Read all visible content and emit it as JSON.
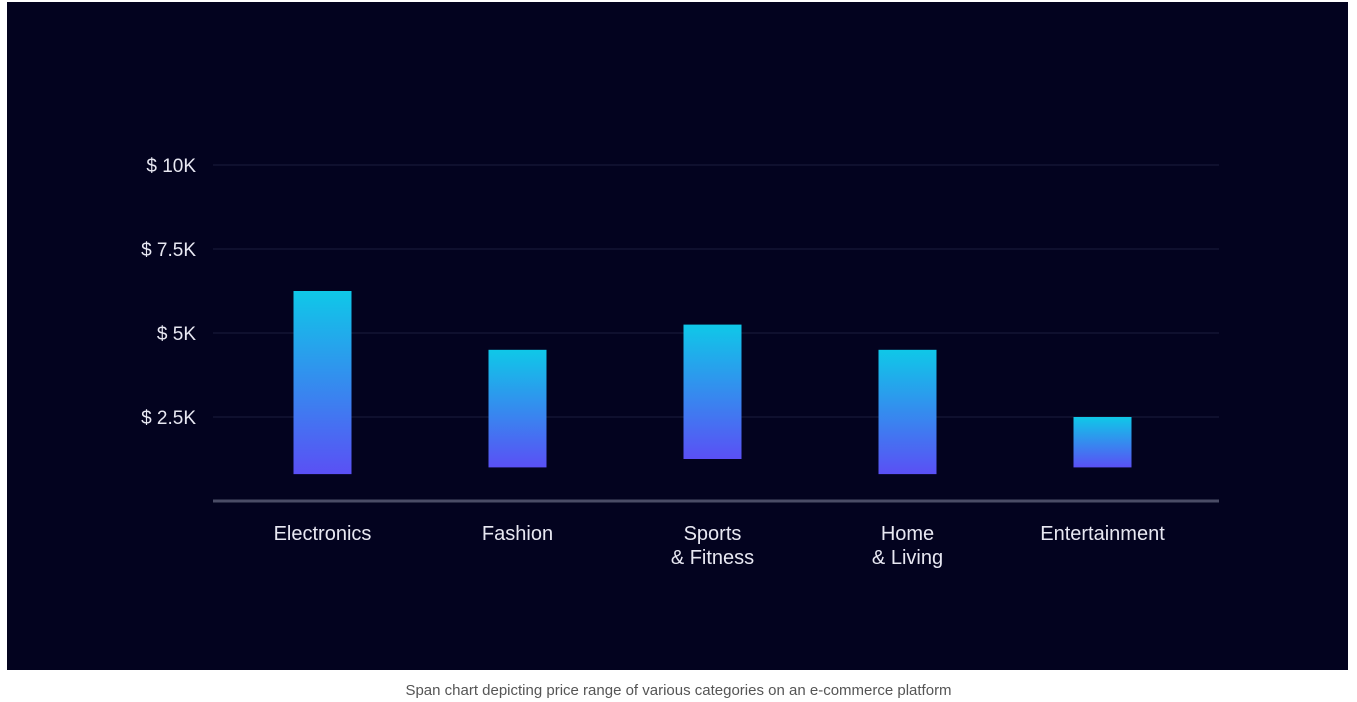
{
  "chart_data": {
    "type": "bar",
    "subtype": "span",
    "title": "",
    "xlabel": "",
    "ylabel": "",
    "ylim": [
      0,
      10000
    ],
    "y_ticks": [
      {
        "value": 2500,
        "label": "$ 2.5K"
      },
      {
        "value": 5000,
        "label": "$ 5K"
      },
      {
        "value": 7500,
        "label": "$ 7.5K"
      },
      {
        "value": 10000,
        "label": "$ 10K"
      }
    ],
    "categories": [
      [
        "Electronics"
      ],
      [
        "Fashion"
      ],
      [
        "Sports",
        "& Fitness"
      ],
      [
        "Home",
        "& Living"
      ],
      [
        "Entertainment"
      ]
    ],
    "ranges": [
      {
        "low": 800,
        "high": 6250
      },
      {
        "low": 1000,
        "high": 4500
      },
      {
        "low": 1250,
        "high": 5250
      },
      {
        "low": 800,
        "high": 4500
      },
      {
        "low": 1000,
        "high": 2500
      }
    ],
    "grid": true,
    "legend": "none",
    "colors": {
      "background": "#03031f",
      "bar_top": "#0fc8e8",
      "bar_bottom": "#5a50f5",
      "grid": "#1b1d3c",
      "axis": "#4a4c66",
      "text": "#e8e8f2"
    }
  },
  "caption": "Span chart depicting price range of various categories on an e-commerce platform"
}
